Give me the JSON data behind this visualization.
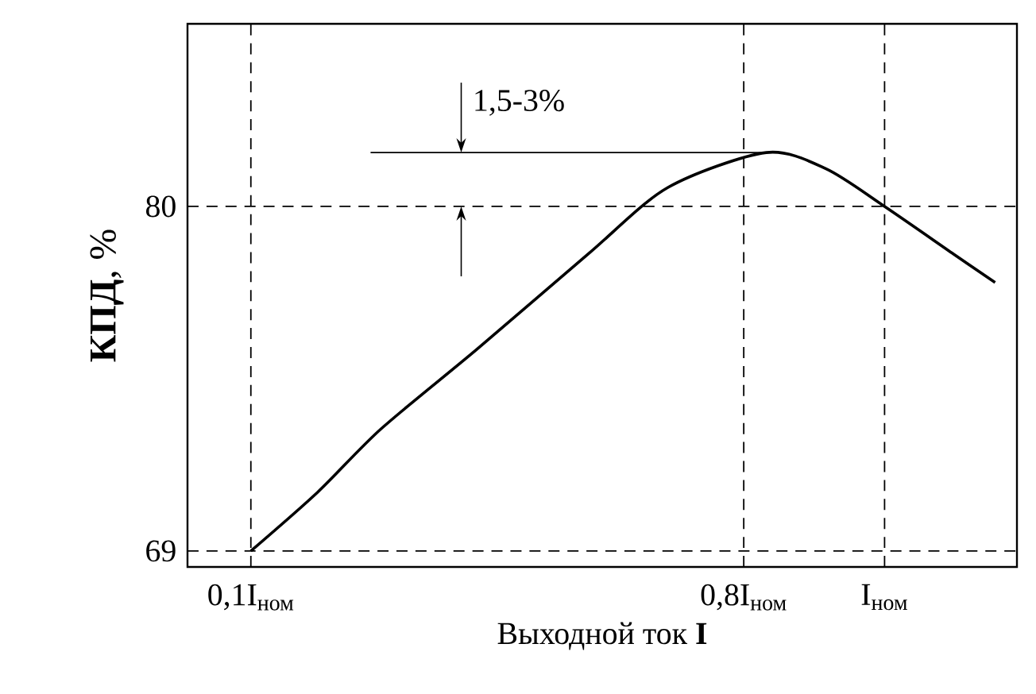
{
  "chart_data": {
    "type": "line",
    "xlabel": "Выходной ток **I**",
    "ylabel": "**КПД**, %",
    "x": [
      0.1,
      0.195,
      0.285,
      0.421,
      0.579,
      0.692,
      0.832,
      0.917,
      1.0,
      1.098,
      1.157
    ],
    "series": [
      {
        "color": "#000000",
        "values": [
          69,
          70.88,
          72.9,
          75.44,
          78.48,
          80.6,
          81.72,
          81.2,
          80,
          78.48,
          77.57
        ]
      },
      {
        "type": "line",
        "color": "#000000",
        "x": [
          0.27,
          0.832
        ],
        "values": [
          81.72,
          81.72
        ]
      }
    ],
    "xlim": [
      0.01,
      1.188
    ],
    "ylim": [
      68.49,
      85.83
    ],
    "xticks": [
      {
        "value": 0.1,
        "label": "0,1I$_{ном}$"
      },
      {
        "value": 0.8,
        "label": "0,8I$_{ном}$"
      },
      {
        "value": 1.0,
        "label": "I$_{ном}$"
      }
    ],
    "yticks": [
      69,
      80
    ],
    "grid": true,
    "line_style": "solid",
    "marker": "none",
    "annotations": [
      "1,5-3%"
    ]
  }
}
